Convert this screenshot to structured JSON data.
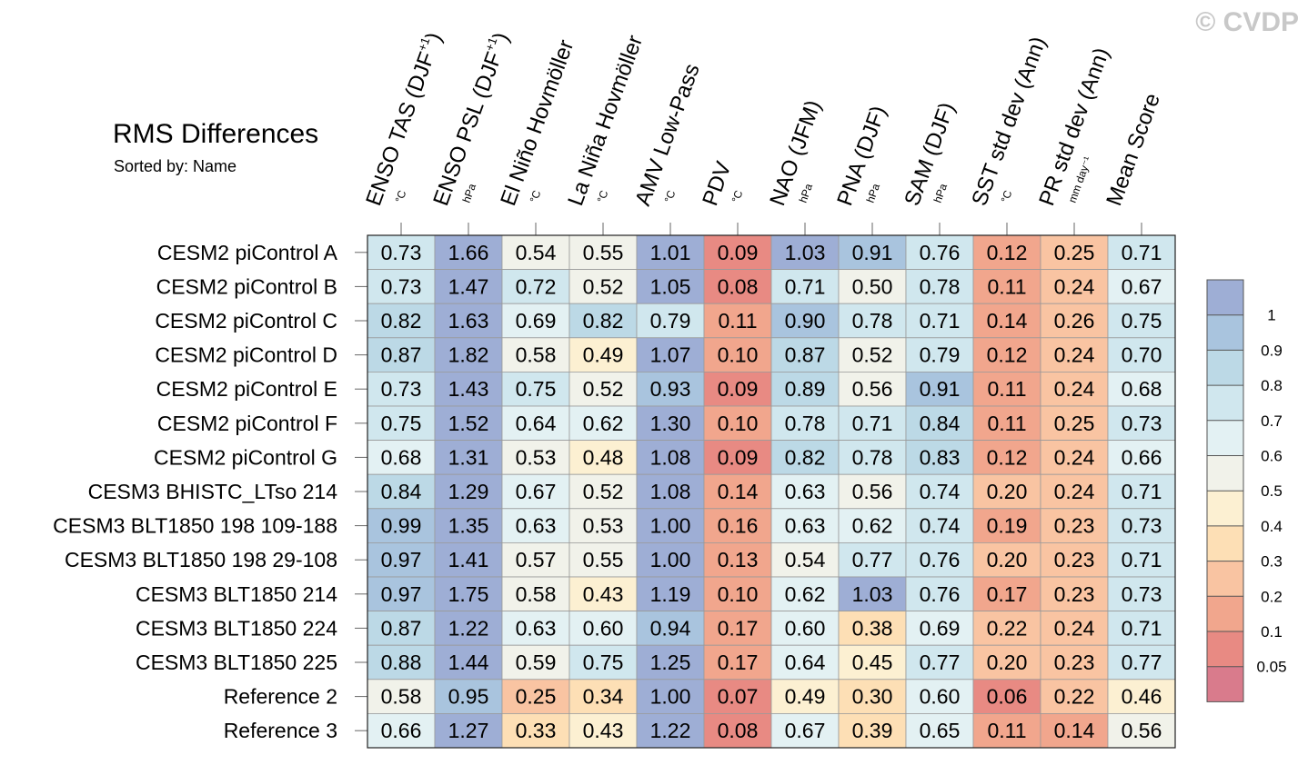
{
  "watermark": "© CVDP",
  "chart_data": {
    "type": "heatmap",
    "title": "RMS Differences",
    "subtitle": "Sorted by: Name",
    "columns": [
      {
        "label": "ENSO TAS (DJF",
        "sup": "+1",
        "tail": ")",
        "unit": "°C"
      },
      {
        "label": "ENSO PSL (DJF",
        "sup": "+1",
        "tail": ")",
        "unit": "hPa"
      },
      {
        "label": "El Niño Hovmöller",
        "sup": "",
        "tail": "",
        "unit": "°C"
      },
      {
        "label": "La Niña Hovmöller",
        "sup": "",
        "tail": "",
        "unit": "°C"
      },
      {
        "label": "AMV Low-Pass",
        "sup": "",
        "tail": "",
        "unit": "°C"
      },
      {
        "label": "PDV",
        "sup": "",
        "tail": "",
        "unit": "°C"
      },
      {
        "label": "NAO (JFM)",
        "sup": "",
        "tail": "",
        "unit": "hPa"
      },
      {
        "label": "PNA (DJF)",
        "sup": "",
        "tail": "",
        "unit": "hPa"
      },
      {
        "label": "SAM (DJF)",
        "sup": "",
        "tail": "",
        "unit": "hPa"
      },
      {
        "label": "SST std dev (Ann)",
        "sup": "",
        "tail": "",
        "unit": "°C"
      },
      {
        "label": "PR std dev (Ann)",
        "sup": "",
        "tail": "",
        "unit": "mm day⁻¹"
      },
      {
        "label": "Mean Score",
        "sup": "",
        "tail": "",
        "unit": ""
      }
    ],
    "rows": [
      "CESM2 piControl A",
      "CESM2 piControl B",
      "CESM2 piControl C",
      "CESM2 piControl D",
      "CESM2 piControl E",
      "CESM2 piControl F",
      "CESM2 piControl G",
      "CESM3 BHISTC_LTso 214",
      "CESM3 BLT1850 198 109-188",
      "CESM3 BLT1850 198 29-108",
      "CESM3 BLT1850 214",
      "CESM3 BLT1850 224",
      "CESM3 BLT1850 225",
      "Reference 2",
      "Reference 3"
    ],
    "values": [
      [
        "0.73",
        "1.66",
        "0.54",
        "0.55",
        "1.01",
        "0.09",
        "1.03",
        "0.91",
        "0.76",
        "0.12",
        "0.25",
        "0.71"
      ],
      [
        "0.73",
        "1.47",
        "0.72",
        "0.52",
        "1.05",
        "0.08",
        "0.71",
        "0.50",
        "0.78",
        "0.11",
        "0.24",
        "0.67"
      ],
      [
        "0.82",
        "1.63",
        "0.69",
        "0.82",
        "0.79",
        "0.11",
        "0.90",
        "0.78",
        "0.71",
        "0.14",
        "0.26",
        "0.75"
      ],
      [
        "0.87",
        "1.82",
        "0.58",
        "0.49",
        "1.07",
        "0.10",
        "0.87",
        "0.52",
        "0.79",
        "0.12",
        "0.24",
        "0.70"
      ],
      [
        "0.73",
        "1.43",
        "0.75",
        "0.52",
        "0.93",
        "0.09",
        "0.89",
        "0.56",
        "0.91",
        "0.11",
        "0.24",
        "0.68"
      ],
      [
        "0.75",
        "1.52",
        "0.64",
        "0.62",
        "1.30",
        "0.10",
        "0.78",
        "0.71",
        "0.84",
        "0.11",
        "0.25",
        "0.73"
      ],
      [
        "0.68",
        "1.31",
        "0.53",
        "0.48",
        "1.08",
        "0.09",
        "0.82",
        "0.78",
        "0.83",
        "0.12",
        "0.24",
        "0.66"
      ],
      [
        "0.84",
        "1.29",
        "0.67",
        "0.52",
        "1.08",
        "0.14",
        "0.63",
        "0.56",
        "0.74",
        "0.20",
        "0.24",
        "0.71"
      ],
      [
        "0.99",
        "1.35",
        "0.63",
        "0.53",
        "1.00",
        "0.16",
        "0.63",
        "0.62",
        "0.74",
        "0.19",
        "0.23",
        "0.73"
      ],
      [
        "0.97",
        "1.41",
        "0.57",
        "0.55",
        "1.00",
        "0.13",
        "0.54",
        "0.77",
        "0.76",
        "0.20",
        "0.23",
        "0.71"
      ],
      [
        "0.97",
        "1.75",
        "0.58",
        "0.43",
        "1.19",
        "0.10",
        "0.62",
        "1.03",
        "0.76",
        "0.17",
        "0.23",
        "0.73"
      ],
      [
        "0.87",
        "1.22",
        "0.63",
        "0.60",
        "0.94",
        "0.17",
        "0.60",
        "0.38",
        "0.69",
        "0.22",
        "0.24",
        "0.71"
      ],
      [
        "0.88",
        "1.44",
        "0.59",
        "0.75",
        "1.25",
        "0.17",
        "0.64",
        "0.45",
        "0.77",
        "0.20",
        "0.23",
        "0.77"
      ],
      [
        "0.58",
        "0.95",
        "0.25",
        "0.34",
        "1.00",
        "0.07",
        "0.49",
        "0.30",
        "0.60",
        "0.06",
        "0.22",
        "0.46"
      ],
      [
        "0.66",
        "1.27",
        "0.33",
        "0.43",
        "1.22",
        "0.08",
        "0.67",
        "0.39",
        "0.65",
        "0.11",
        "0.14",
        "0.56"
      ]
    ],
    "colorbar": {
      "levels": [
        "1",
        "0.9",
        "0.8",
        "0.7",
        "0.6",
        "0.5",
        "0.4",
        "0.3",
        "0.2",
        "0.1",
        "0.05"
      ],
      "colors": [
        "#9eaed5",
        "#a9c4de",
        "#bcd9e6",
        "#d0e7ee",
        "#e3f1f3",
        "#f1f2ea",
        "#fcf0d2",
        "#fddfb5",
        "#f9c4a2",
        "#f1a68d",
        "#e88a83",
        "#d97b8c"
      ]
    }
  }
}
